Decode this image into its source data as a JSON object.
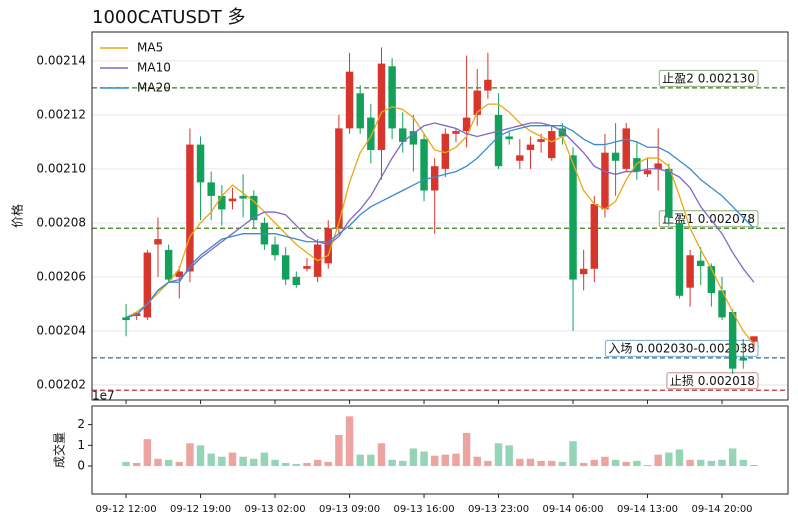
{
  "chart_data": [
    {
      "type": "candlestick",
      "title": "1000CATUSDT  多",
      "ylabel": "价格",
      "categories": [
        "09-12 12:00",
        null,
        null,
        null,
        null,
        null,
        null,
        "09-12 19:00",
        null,
        null,
        null,
        null,
        null,
        null,
        "09-13 02:00",
        null,
        null,
        null,
        null,
        null,
        null,
        "09-13 09:00",
        null,
        null,
        null,
        null,
        null,
        null,
        "09-13 16:00",
        null,
        null,
        null,
        null,
        null,
        null,
        "09-13 23:00",
        null,
        null,
        null,
        null,
        null,
        null,
        "09-14 06:00",
        null,
        null,
        null,
        null,
        null,
        null,
        "09-14 13:00",
        null,
        null,
        null,
        null,
        null,
        null,
        "09-14 20:00",
        null,
        null,
        null
      ],
      "open": [
        0.002045,
        0.0020455,
        0.002045,
        0.002072,
        0.00207,
        0.00206,
        0.002062,
        0.002109,
        0.002095,
        0.00209,
        0.002088,
        0.00209,
        0.00209,
        0.00208,
        0.002072,
        0.002068,
        0.00206,
        0.002063,
        0.00206,
        0.002065,
        0.002078,
        0.002115,
        0.002128,
        0.002119,
        0.002107,
        0.002138,
        0.002115,
        0.002114,
        0.002111,
        0.002092,
        0.0021,
        0.002113,
        0.002114,
        0.00212,
        0.002129,
        0.00212,
        0.002112,
        0.002103,
        0.002107,
        0.00211,
        0.002104,
        0.002115,
        0.002105,
        0.002061,
        0.002063,
        0.002085,
        0.002106,
        0.0021,
        0.002104,
        0.002098,
        0.0021,
        0.0021,
        0.00208,
        0.002056,
        0.002066,
        0.002064,
        0.002055,
        0.002047,
        0.00203,
        0.002036
      ],
      "high": [
        0.00205,
        0.002047,
        0.00207,
        0.002082,
        0.002072,
        0.002064,
        0.002115,
        0.002112,
        0.002099,
        0.002094,
        0.002093,
        0.002098,
        0.002092,
        0.002082,
        0.002075,
        0.002071,
        0.002062,
        0.002067,
        0.002074,
        0.002081,
        0.00212,
        0.002143,
        0.002131,
        0.002124,
        0.002145,
        0.002141,
        0.002121,
        0.00212,
        0.002113,
        0.002104,
        0.002115,
        0.002115,
        0.002142,
        0.002137,
        0.002143,
        0.002128,
        0.002114,
        0.002111,
        0.002112,
        0.002113,
        0.002116,
        0.002117,
        0.002108,
        0.00207,
        0.00209,
        0.002113,
        0.002117,
        0.002117,
        0.00211,
        0.002104,
        0.002115,
        0.002102,
        0.002083,
        0.00207,
        0.002071,
        0.002065,
        0.00206,
        0.002048,
        0.002037,
        0.002038
      ],
      "low": [
        0.002038,
        0.002044,
        0.002044,
        0.00206,
        0.002058,
        0.002052,
        0.002058,
        0.002081,
        0.002081,
        0.002079,
        0.002085,
        0.002082,
        0.002078,
        0.00207,
        0.002066,
        0.002057,
        0.002056,
        0.002062,
        0.002058,
        0.002063,
        0.002076,
        0.002113,
        0.002113,
        0.002102,
        0.002096,
        0.002111,
        0.002106,
        0.002099,
        0.002088,
        0.002076,
        0.002097,
        0.00211,
        0.002108,
        0.002116,
        0.002126,
        0.0021,
        0.002109,
        0.0021,
        0.0021,
        0.002106,
        0.002103,
        0.002109,
        0.00204,
        0.002055,
        0.002058,
        0.002082,
        0.00209,
        0.002099,
        0.002096,
        0.002097,
        0.002092,
        0.002079,
        0.002052,
        0.002049,
        0.002057,
        0.002049,
        0.002044,
        0.002024,
        0.002026,
        0.002033
      ],
      "close": [
        0.002044,
        0.0020465,
        0.002069,
        0.002074,
        0.002059,
        0.002062,
        0.002109,
        0.002095,
        0.00209,
        0.002085,
        0.002089,
        0.002089,
        0.002081,
        0.002072,
        0.002068,
        0.002059,
        0.002057,
        0.002064,
        0.002072,
        0.002078,
        0.002115,
        0.002136,
        0.002115,
        0.002107,
        0.002139,
        0.002115,
        0.00211,
        0.002109,
        0.002092,
        0.002101,
        0.002113,
        0.002114,
        0.002119,
        0.002129,
        0.002133,
        0.002101,
        0.002111,
        0.002105,
        0.002109,
        0.002111,
        0.002114,
        0.002112,
        0.002059,
        0.002063,
        0.002087,
        0.002106,
        0.002103,
        0.002115,
        0.002099,
        0.0020995,
        0.002102,
        0.002082,
        0.002053,
        0.002068,
        0.002064,
        0.002054,
        0.002045,
        0.002026,
        0.002029,
        0.002038
      ],
      "up_color": "#d6362c",
      "down_color": "#13a05b",
      "series": [
        {
          "name": "MA5",
          "color": "#e8a817",
          "values": [
            0.002045,
            0.002047,
            0.00205,
            0.002054,
            0.002058,
            0.002063,
            0.002075,
            0.00208,
            0.002084,
            0.00209,
            0.002094,
            0.002091,
            0.002088,
            0.002084,
            0.00208,
            0.002076,
            0.002072,
            0.002069,
            0.002066,
            0.002068,
            0.00208,
            0.002095,
            0.002106,
            0.002112,
            0.002121,
            0.002123,
            0.002122,
            0.002119,
            0.002113,
            0.002107,
            0.002106,
            0.002108,
            0.002112,
            0.002121,
            0.002124,
            0.002124,
            0.002121,
            0.002117,
            0.002114,
            0.002112,
            0.00211,
            0.002112,
            0.002102,
            0.002092,
            0.002087,
            0.002085,
            0.002088,
            0.002096,
            0.002102,
            0.002104,
            0.002104,
            0.002101,
            0.00209,
            0.002078,
            0.00207,
            0.002063,
            0.002055,
            0.002047,
            0.00204,
            0.002035
          ]
        },
        {
          "name": "MA10",
          "color": "#8066c8",
          "values": [
            0.002045,
            0.002046,
            0.00205,
            0.002055,
            0.002058,
            0.002059,
            0.002063,
            0.002067,
            0.00207,
            0.002073,
            0.002076,
            0.002079,
            0.002082,
            0.002084,
            0.002084,
            0.002083,
            0.002079,
            0.002075,
            0.002073,
            0.002072,
            0.002075,
            0.002081,
            0.002085,
            0.00209,
            0.002097,
            0.002104,
            0.00211,
            0.002113,
            0.002116,
            0.002117,
            0.002116,
            0.002115,
            0.002113,
            0.002112,
            0.002113,
            0.002114,
            0.002115,
            0.002116,
            0.002117,
            0.002117,
            0.002116,
            0.002114,
            0.00211,
            0.002106,
            0.002101,
            0.002099,
            0.002098,
            0.002099,
            0.002099,
            0.0021,
            0.0021,
            0.002099,
            0.002097,
            0.002093,
            0.002086,
            0.002081,
            0.002076,
            0.002069,
            0.002063,
            0.002058
          ]
        },
        {
          "name": "MA20",
          "color": "#3a8ccc",
          "values": [
            0.002045,
            0.002046,
            0.00205,
            0.002055,
            0.002058,
            0.002058,
            0.002064,
            0.002068,
            0.002071,
            0.002074,
            0.002075,
            0.002076,
            0.002076,
            0.002076,
            0.002076,
            0.002075,
            0.002074,
            0.002073,
            0.002073,
            0.002073,
            0.002076,
            0.002079,
            0.002083,
            0.002086,
            0.002088,
            0.00209,
            0.002092,
            0.002094,
            0.002096,
            0.002097,
            0.002098,
            0.002099,
            0.002101,
            0.002104,
            0.002108,
            0.002112,
            0.002114,
            0.002115,
            0.002116,
            0.002116,
            0.002116,
            0.002116,
            0.002114,
            0.002111,
            0.002109,
            0.002109,
            0.00211,
            0.002111,
            0.00211,
            0.002108,
            0.002108,
            0.002106,
            0.002103,
            0.0021,
            0.002096,
            0.002093,
            0.00209,
            0.002086,
            0.002082,
            0.002078
          ]
        }
      ],
      "levels": [
        {
          "label": "止盈2 0.002130",
          "value": 0.00213,
          "color": "#3f7a1e"
        },
        {
          "label": "止盈1 0.002078",
          "value": 0.002078,
          "color": "#3f7a1e"
        },
        {
          "label": "入场 0.002030-0.002038",
          "value": 0.00203,
          "color": "#1f6fa8"
        },
        {
          "label": "止损 0.002018",
          "value": 0.002018,
          "color": "#a83a3a"
        }
      ],
      "xlim": [
        -3.2,
        62.2
      ],
      "ylim": [
        0.0020144,
        0.0021507
      ],
      "yticks": [
        0.00202,
        0.00204,
        0.00206,
        0.00208,
        {
          "value": 0.0021,
          "label": "0.00210"
        },
        0.00212,
        0.00214
      ],
      "grid": true,
      "legend": "upper left"
    },
    {
      "type": "bar",
      "ylabel": "成交量",
      "offset_label": "1e7",
      "values": [
        0.2,
        0.15,
        1.3,
        0.35,
        0.3,
        0.2,
        1.1,
        1.0,
        0.6,
        0.45,
        0.65,
        0.45,
        0.35,
        0.65,
        0.3,
        0.15,
        0.1,
        0.15,
        0.3,
        0.2,
        1.5,
        2.4,
        0.55,
        0.55,
        1.1,
        0.3,
        0.25,
        0.85,
        0.7,
        0.5,
        0.55,
        0.6,
        1.6,
        0.45,
        0.25,
        1.1,
        1.0,
        0.35,
        0.35,
        0.25,
        0.25,
        0.2,
        1.2,
        0.15,
        0.3,
        0.45,
        0.3,
        0.2,
        0.25,
        0.05,
        0.55,
        0.65,
        0.8,
        0.3,
        0.3,
        0.25,
        0.3,
        0.85,
        0.3,
        0.05
      ],
      "xlim": [
        -3.2,
        62.2
      ],
      "ylim": [
        -1.35,
        2.9
      ],
      "yticks": [
        0,
        1,
        2
      ]
    }
  ]
}
